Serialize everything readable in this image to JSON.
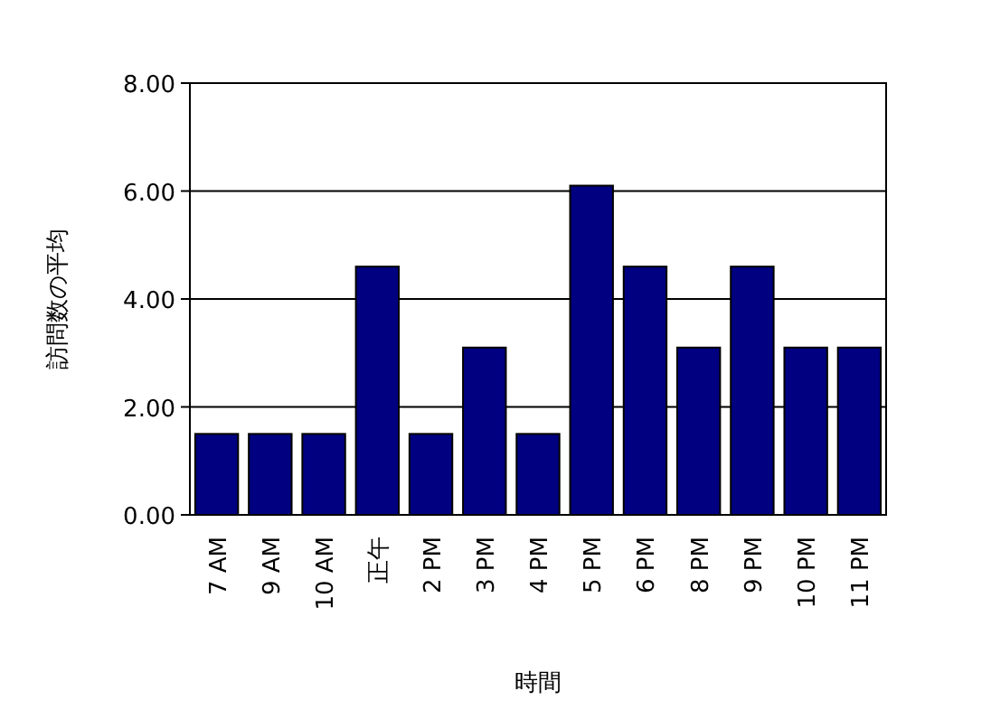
{
  "chart_data": {
    "type": "bar",
    "xlabel": "時間",
    "ylabel": "訪問数の平均",
    "categories": [
      "7 AM",
      "9 AM",
      "10 AM",
      "正午",
      "2 PM",
      "3 PM",
      "4 PM",
      "5 PM",
      "6 PM",
      "8 PM",
      "9 PM",
      "10 PM",
      "11 PM"
    ],
    "values": [
      1.5,
      1.5,
      1.5,
      4.6,
      1.5,
      3.1,
      1.5,
      6.1,
      4.6,
      3.1,
      4.6,
      3.1,
      3.1
    ],
    "color": "#000080",
    "ylim": [
      0,
      8
    ],
    "yticks": [
      {
        "value": 0,
        "label": "0.00"
      },
      {
        "value": 2,
        "label": "2.00"
      },
      {
        "value": 4,
        "label": "4.00"
      },
      {
        "value": 6,
        "label": "6.00"
      },
      {
        "value": 8,
        "label": "8.00"
      }
    ],
    "grid": "y"
  }
}
